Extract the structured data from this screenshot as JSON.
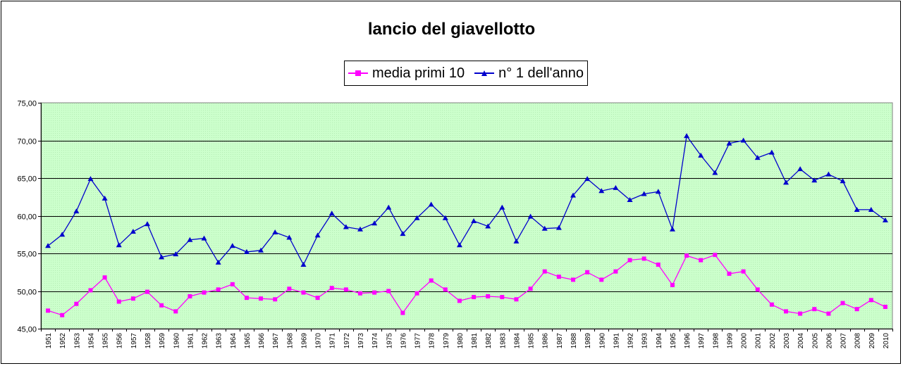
{
  "chart_data": {
    "type": "line",
    "title": "lancio del giavellotto",
    "xlabel": "",
    "ylabel": "",
    "ylim": [
      45,
      75
    ],
    "y_ticks": [
      "45,00",
      "50,00",
      "55,00",
      "60,00",
      "65,00",
      "70,00",
      "75,00"
    ],
    "grid": true,
    "legend_placement": "top-center",
    "plot_background": "#ccffcc",
    "categories": [
      "1951",
      "1952",
      "1953",
      "1954",
      "1955",
      "1956",
      "1957",
      "1958",
      "1959",
      "1960",
      "1961",
      "1962",
      "1963",
      "1964",
      "1965",
      "1966",
      "1967",
      "1968",
      "1969",
      "1970",
      "1971",
      "1972",
      "1973",
      "1974",
      "1975",
      "1976",
      "1977",
      "1978",
      "1979",
      "1980",
      "1981",
      "1982",
      "1983",
      "1984",
      "1985",
      "1986",
      "1987",
      "1988",
      "1989",
      "1990",
      "1991",
      "1992",
      "1993",
      "1994",
      "1995",
      "1996",
      "1997",
      "1998",
      "1999",
      "2000",
      "2001",
      "2002",
      "2003",
      "2004",
      "2005",
      "2006",
      "2007",
      "2008",
      "2009",
      "2010"
    ],
    "series": [
      {
        "name": "media primi 10",
        "color": "#ff00ff",
        "marker": "square",
        "values": [
          47.4,
          46.8,
          48.3,
          50.1,
          51.8,
          48.6,
          49.0,
          49.9,
          48.1,
          47.3,
          49.3,
          49.8,
          50.2,
          50.9,
          49.1,
          49.0,
          48.9,
          50.3,
          49.8,
          49.1,
          50.4,
          50.2,
          49.7,
          49.8,
          50.0,
          47.1,
          49.7,
          51.4,
          50.2,
          48.7,
          49.2,
          49.3,
          49.2,
          48.9,
          50.3,
          52.6,
          51.9,
          51.5,
          52.5,
          51.5,
          52.6,
          54.1,
          54.3,
          53.5,
          50.8,
          54.7,
          54.1,
          54.8,
          52.3,
          52.6,
          50.2,
          48.2,
          47.3,
          47.0,
          47.6,
          47.0,
          48.4,
          47.6,
          48.8,
          47.9
        ]
      },
      {
        "name": "n° 1 dell'anno",
        "color": "#0000cc",
        "marker": "triangle",
        "values": [
          56.0,
          57.5,
          60.6,
          64.9,
          62.3,
          56.1,
          57.9,
          58.9,
          54.5,
          54.9,
          56.8,
          57.0,
          53.8,
          56.0,
          55.2,
          55.4,
          57.8,
          57.1,
          53.5,
          57.4,
          60.3,
          58.5,
          58.2,
          59.0,
          61.1,
          57.6,
          59.7,
          61.5,
          59.7,
          56.1,
          59.3,
          58.6,
          61.1,
          56.6,
          59.9,
          58.3,
          58.4,
          62.7,
          64.9,
          63.3,
          63.7,
          62.1,
          62.9,
          63.2,
          58.2,
          70.6,
          68.0,
          65.7,
          69.6,
          70.0,
          67.7,
          68.4,
          64.4,
          66.2,
          64.7,
          65.5,
          64.6,
          60.8,
          60.8,
          59.4
        ]
      }
    ]
  }
}
